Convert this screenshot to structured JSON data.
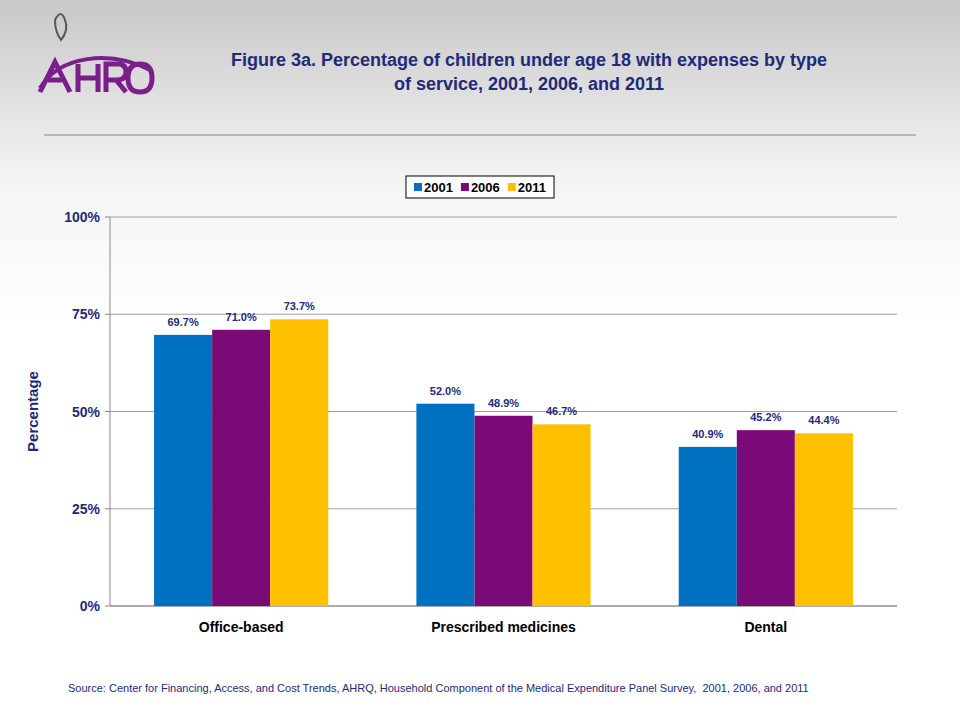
{
  "chart_data": {
    "type": "bar",
    "title": "Figure 3a. Percentage of children under age 18 with expenses by type of service, 2001, 2006, and 2011",
    "y_label": "Percentage",
    "source": "Source: Center for Financing, Access, and Cost Trends, AHRQ, Household Component of the Medical Expenditure Panel Survey,  2001, 2006, and 2011",
    "categories": [
      "Office-based",
      "Prescribed medicines",
      "Dental"
    ],
    "series": [
      {
        "name": "2001",
        "color": "#0070c0",
        "values": [
          69.7,
          52.0,
          40.9
        ],
        "value_labels": [
          "69.7%",
          "52.0%",
          "40.9%"
        ]
      },
      {
        "name": "2006",
        "color": "#7a0a78",
        "values": [
          71.0,
          48.9,
          45.2
        ],
        "value_labels": [
          "71.0%",
          "48.9%",
          "45.2%"
        ]
      },
      {
        "name": "2011",
        "color": "#ffc000",
        "values": [
          73.7,
          46.7,
          44.4
        ],
        "value_labels": [
          "73.7%",
          "46.7%",
          "44.4%"
        ]
      }
    ],
    "ylim": [
      0,
      100
    ],
    "yticks": [
      {
        "value": 0,
        "label": "0%"
      },
      {
        "value": 25,
        "label": "25%"
      },
      {
        "value": 50,
        "label": "50%"
      },
      {
        "value": 75,
        "label": "75%"
      },
      {
        "value": 100,
        "label": "100%"
      }
    ],
    "grid": true,
    "legend": "top",
    "data_labels": true
  }
}
